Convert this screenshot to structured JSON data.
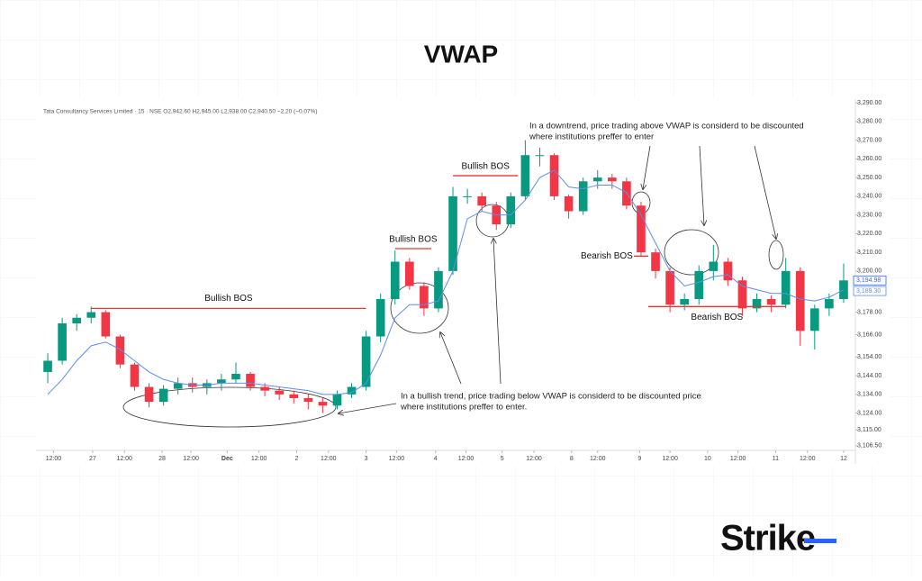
{
  "chart_data": {
    "type": "candlestick",
    "title": "VWAP",
    "subtitle": "Tata Consultancy Services Limited · 15 · NSE  O2,942.60 H2,945.00 L2,938.00 C2,940.50 −2.20 (−0.07%)",
    "up_color": "#089981",
    "down_color": "#f23645",
    "open": [
      3146,
      3152,
      3172,
      3175,
      3178,
      3165,
      3150,
      3138,
      3130,
      3137,
      3140,
      3138,
      3140,
      3142,
      3145,
      3138,
      3136,
      3134,
      3132,
      3130,
      3128,
      3134,
      3138,
      3165,
      3185,
      3205,
      3192,
      3180,
      3200,
      3240,
      3240,
      3235,
      3225,
      3240,
      3262,
      3262,
      3240,
      3232,
      3248,
      3250,
      3248,
      3235,
      3210,
      3200,
      3182,
      3185,
      3200,
      3205,
      3195,
      3180,
      3185,
      3182,
      3200,
      3168,
      3180,
      3185
    ],
    "high": [
      3156,
      3175,
      3177,
      3181,
      3179,
      3166,
      3151,
      3140,
      3139,
      3143,
      3143,
      3142,
      3145,
      3151,
      3146,
      3140,
      3138,
      3136,
      3134,
      3132,
      3136,
      3140,
      3168,
      3188,
      3211,
      3207,
      3194,
      3202,
      3245,
      3244,
      3242,
      3237,
      3242,
      3270,
      3266,
      3263,
      3241,
      3250,
      3254,
      3252,
      3250,
      3237,
      3212,
      3202,
      3188,
      3203,
      3214,
      3207,
      3197,
      3188,
      3187,
      3207,
      3202,
      3182,
      3188,
      3204
    ],
    "low": [
      3140,
      3150,
      3168,
      3172,
      3164,
      3148,
      3136,
      3127,
      3128,
      3134,
      3135,
      3134,
      3136,
      3140,
      3136,
      3133,
      3131,
      3129,
      3126,
      3124,
      3126,
      3132,
      3136,
      3162,
      3182,
      3190,
      3176,
      3178,
      3198,
      3236,
      3232,
      3222,
      3223,
      3238,
      3256,
      3238,
      3228,
      3230,
      3244,
      3244,
      3233,
      3208,
      3196,
      3178,
      3179,
      3182,
      3195,
      3192,
      3176,
      3178,
      3178,
      3180,
      3160,
      3158,
      3176,
      3183
    ],
    "close": [
      3152,
      3172,
      3175,
      3178,
      3165,
      3150,
      3138,
      3130,
      3137,
      3140,
      3138,
      3140,
      3142,
      3145,
      3138,
      3136,
      3134,
      3132,
      3130,
      3128,
      3134,
      3138,
      3165,
      3185,
      3205,
      3192,
      3180,
      3200,
      3240,
      3240,
      3235,
      3225,
      3240,
      3262,
      3262,
      3240,
      3232,
      3248,
      3250,
      3248,
      3235,
      3210,
      3200,
      3182,
      3185,
      3200,
      3205,
      3195,
      3180,
      3185,
      3182,
      3200,
      3168,
      3180,
      3185,
      3195
    ],
    "vwap": {
      "color": "#5b8def",
      "values": [
        3134,
        3142,
        3152,
        3160,
        3162,
        3158,
        3152,
        3146,
        3142,
        3140,
        3139,
        3139,
        3140,
        3140,
        3140,
        3139,
        3138,
        3137,
        3136,
        3134,
        3134,
        3135,
        3140,
        3155,
        3175,
        3182,
        3182,
        3184,
        3200,
        3228,
        3232,
        3230,
        3230,
        3238,
        3250,
        3254,
        3245,
        3244,
        3246,
        3246,
        3242,
        3230,
        3215,
        3200,
        3192,
        3194,
        3197,
        3198,
        3192,
        3190,
        3188,
        3188,
        3185,
        3184,
        3186,
        3190
      ]
    },
    "xlim": [
      -0.5,
      55.5
    ],
    "xticks": [
      {
        "value": 0.4,
        "label": "12:00"
      },
      {
        "value": 3.1,
        "label": "27"
      },
      {
        "value": 5.3,
        "label": "12:00"
      },
      {
        "value": 7.9,
        "label": "28"
      },
      {
        "value": 9.9,
        "label": "12:00"
      },
      {
        "value": 12.4,
        "label": "Dec"
      },
      {
        "value": 14.6,
        "label": "12:00"
      },
      {
        "value": 17.2,
        "label": "2"
      },
      {
        "value": 19.4,
        "label": "12:00"
      },
      {
        "value": 22,
        "label": "3"
      },
      {
        "value": 24.1,
        "label": "12:00"
      },
      {
        "value": 26.8,
        "label": "4"
      },
      {
        "value": 28.9,
        "label": "12:00"
      },
      {
        "value": 31.4,
        "label": "5"
      },
      {
        "value": 33.6,
        "label": "12:00"
      },
      {
        "value": 36.2,
        "label": "8"
      },
      {
        "value": 38,
        "label": "12:00"
      },
      {
        "value": 40.9,
        "label": "9"
      },
      {
        "value": 43,
        "label": "12:00"
      },
      {
        "value": 45.6,
        "label": "10"
      },
      {
        "value": 47.7,
        "label": "12:00"
      },
      {
        "value": 50.3,
        "label": "11"
      },
      {
        "value": 52.5,
        "label": "12:00"
      },
      {
        "value": 55,
        "label": "12"
      }
    ],
    "ylim": [
      3105,
      3292
    ],
    "yticks": [
      {
        "value": 3290,
        "label": "3,290.00"
      },
      {
        "value": 3280,
        "label": "3,280.00"
      },
      {
        "value": 3270,
        "label": "3,270.00"
      },
      {
        "value": 3260,
        "label": "3,260.00"
      },
      {
        "value": 3250,
        "label": "3,250.00"
      },
      {
        "value": 3240,
        "label": "3,240.00"
      },
      {
        "value": 3230,
        "label": "3,230.00"
      },
      {
        "value": 3220,
        "label": "3,220.00"
      },
      {
        "value": 3210,
        "label": "3,210.00"
      },
      {
        "value": 3200,
        "label": "3,200.00"
      },
      {
        "value": 3178,
        "label": "3,178.00"
      },
      {
        "value": 3166,
        "label": "3,166.00"
      },
      {
        "value": 3154,
        "label": "3,154.00"
      },
      {
        "value": 3144,
        "label": "3,144.00"
      },
      {
        "value": 3134,
        "label": "3,134.00"
      },
      {
        "value": 3124,
        "label": "3,124.00"
      },
      {
        "value": 3115,
        "label": "3,115.00"
      },
      {
        "value": 3106.5,
        "label": "3,106.50"
      }
    ],
    "price_tags": [
      {
        "value": 3194.98,
        "label": "3,194.98",
        "color": "#2962ff"
      },
      {
        "value": 3189.3,
        "label": "3,189.30",
        "color": "#5b8def"
      }
    ],
    "bos_lines": [
      {
        "label": "Bullish BOS",
        "level": 3180,
        "start": 3,
        "end": 22
      },
      {
        "label": "Bullish BOS",
        "level": 3212,
        "start": 24,
        "end": 26.5
      },
      {
        "label": "Bullish BOS",
        "level": 3251,
        "start": 28,
        "end": 32.5
      },
      {
        "label": "Bearish BOS",
        "level": 3208,
        "start": 40.5,
        "end": 41.5
      },
      {
        "label": "Bearish BOS",
        "level": 3181,
        "start": 41.5,
        "end": 51
      }
    ],
    "notes": [
      {
        "lines": [
          "In a downtrend, price trading above VWAP is considerd to be discounted",
          "where institutions preffer to enter"
        ]
      },
      {
        "lines": [
          "In a bullish trend, price trading below VWAP is considerd to be discounted price",
          "where institutions preffer to enter."
        ]
      }
    ]
  },
  "brand": "Strike"
}
